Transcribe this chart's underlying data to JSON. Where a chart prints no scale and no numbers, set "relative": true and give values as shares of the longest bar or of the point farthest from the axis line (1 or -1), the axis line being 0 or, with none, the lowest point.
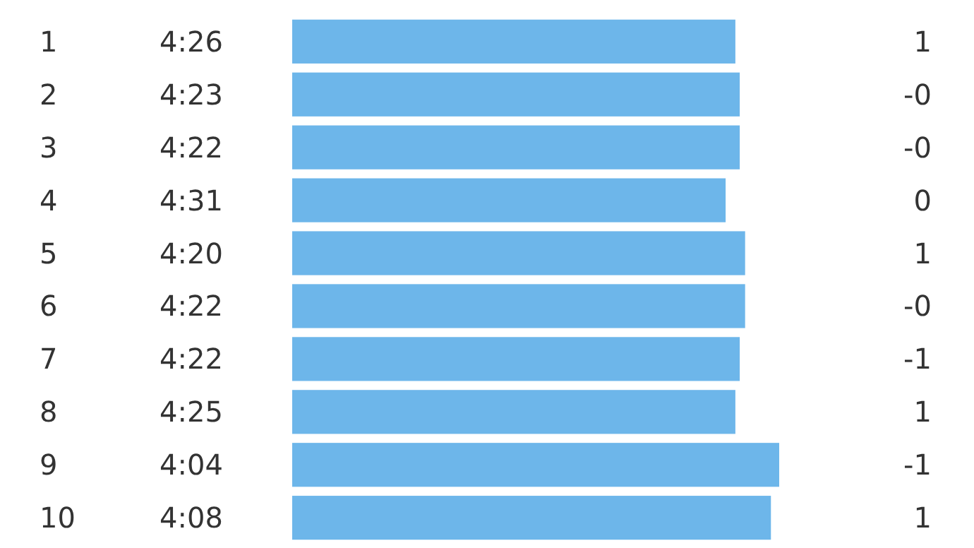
{
  "chart_data": {
    "type": "bar",
    "orientation": "horizontal",
    "relative": true,
    "categories": [
      "1",
      "2",
      "3",
      "4",
      "5",
      "6",
      "7",
      "8",
      "9",
      "10"
    ],
    "series": [
      {
        "color": "#6db6ea",
        "values": [
          0.91,
          0.919,
          0.919,
          0.89,
          0.93,
          0.93,
          0.919,
          0.91,
          1,
          0.983
        ]
      }
    ],
    "annotations": [
      "4:26",
      "4:23",
      "4:22",
      "4:31",
      "4:20",
      "4:22",
      "4:22",
      "4:25",
      "4:04",
      "4:08",
      "1",
      "-0",
      "-0",
      "0",
      "1",
      "-0",
      "-1",
      "1",
      "-1",
      "1"
    ]
  }
}
